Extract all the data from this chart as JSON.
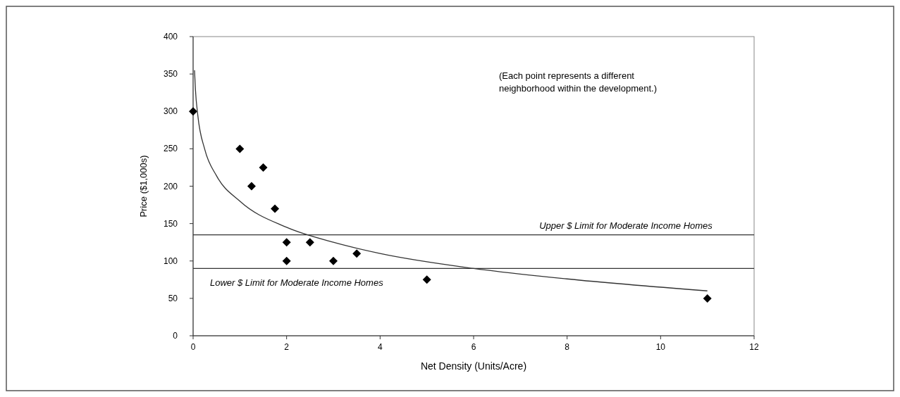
{
  "chart_data": {
    "type": "scatter",
    "xlabel": "Net Density (Units/Acre)",
    "ylabel": "Price ($1,000s)",
    "xlim": [
      0,
      12
    ],
    "xticks": [
      0,
      2,
      4,
      6,
      8,
      10,
      12
    ],
    "ylim": [
      0,
      400
    ],
    "yticks": [
      0,
      50,
      100,
      150,
      200,
      250,
      300,
      350,
      400
    ],
    "grid": false,
    "marker": "diamond",
    "series": [
      {
        "color": "#000000",
        "x": [
          0,
          1,
          1.25,
          1.5,
          1.75,
          2,
          2,
          2.5,
          3,
          3.5,
          5,
          11
        ],
        "values": [
          300,
          250,
          200,
          225,
          170,
          125,
          100,
          125,
          100,
          110,
          75,
          50
        ]
      },
      {
        "type": "line",
        "color": "#333333",
        "marker": "none",
        "x": [
          0.03,
          0.05,
          0.1,
          0.25,
          0.5,
          1,
          2,
          3,
          4,
          6,
          8,
          11
        ],
        "values": [
          355,
          329,
          295,
          249,
          214,
          180,
          145,
          125,
          110,
          90,
          76,
          60
        ]
      }
    ],
    "ref_lines": [
      {
        "axis": "y",
        "value": 135,
        "label": "Upper $ Limit for Moderate Income Homes",
        "color": "#333333"
      },
      {
        "axis": "y",
        "value": 90,
        "label": "Lower $ Limit for Moderate Income Homes",
        "color": "#333333"
      }
    ],
    "annotations": [
      "(Each point represents a different neighborhood within the development.)"
    ]
  }
}
